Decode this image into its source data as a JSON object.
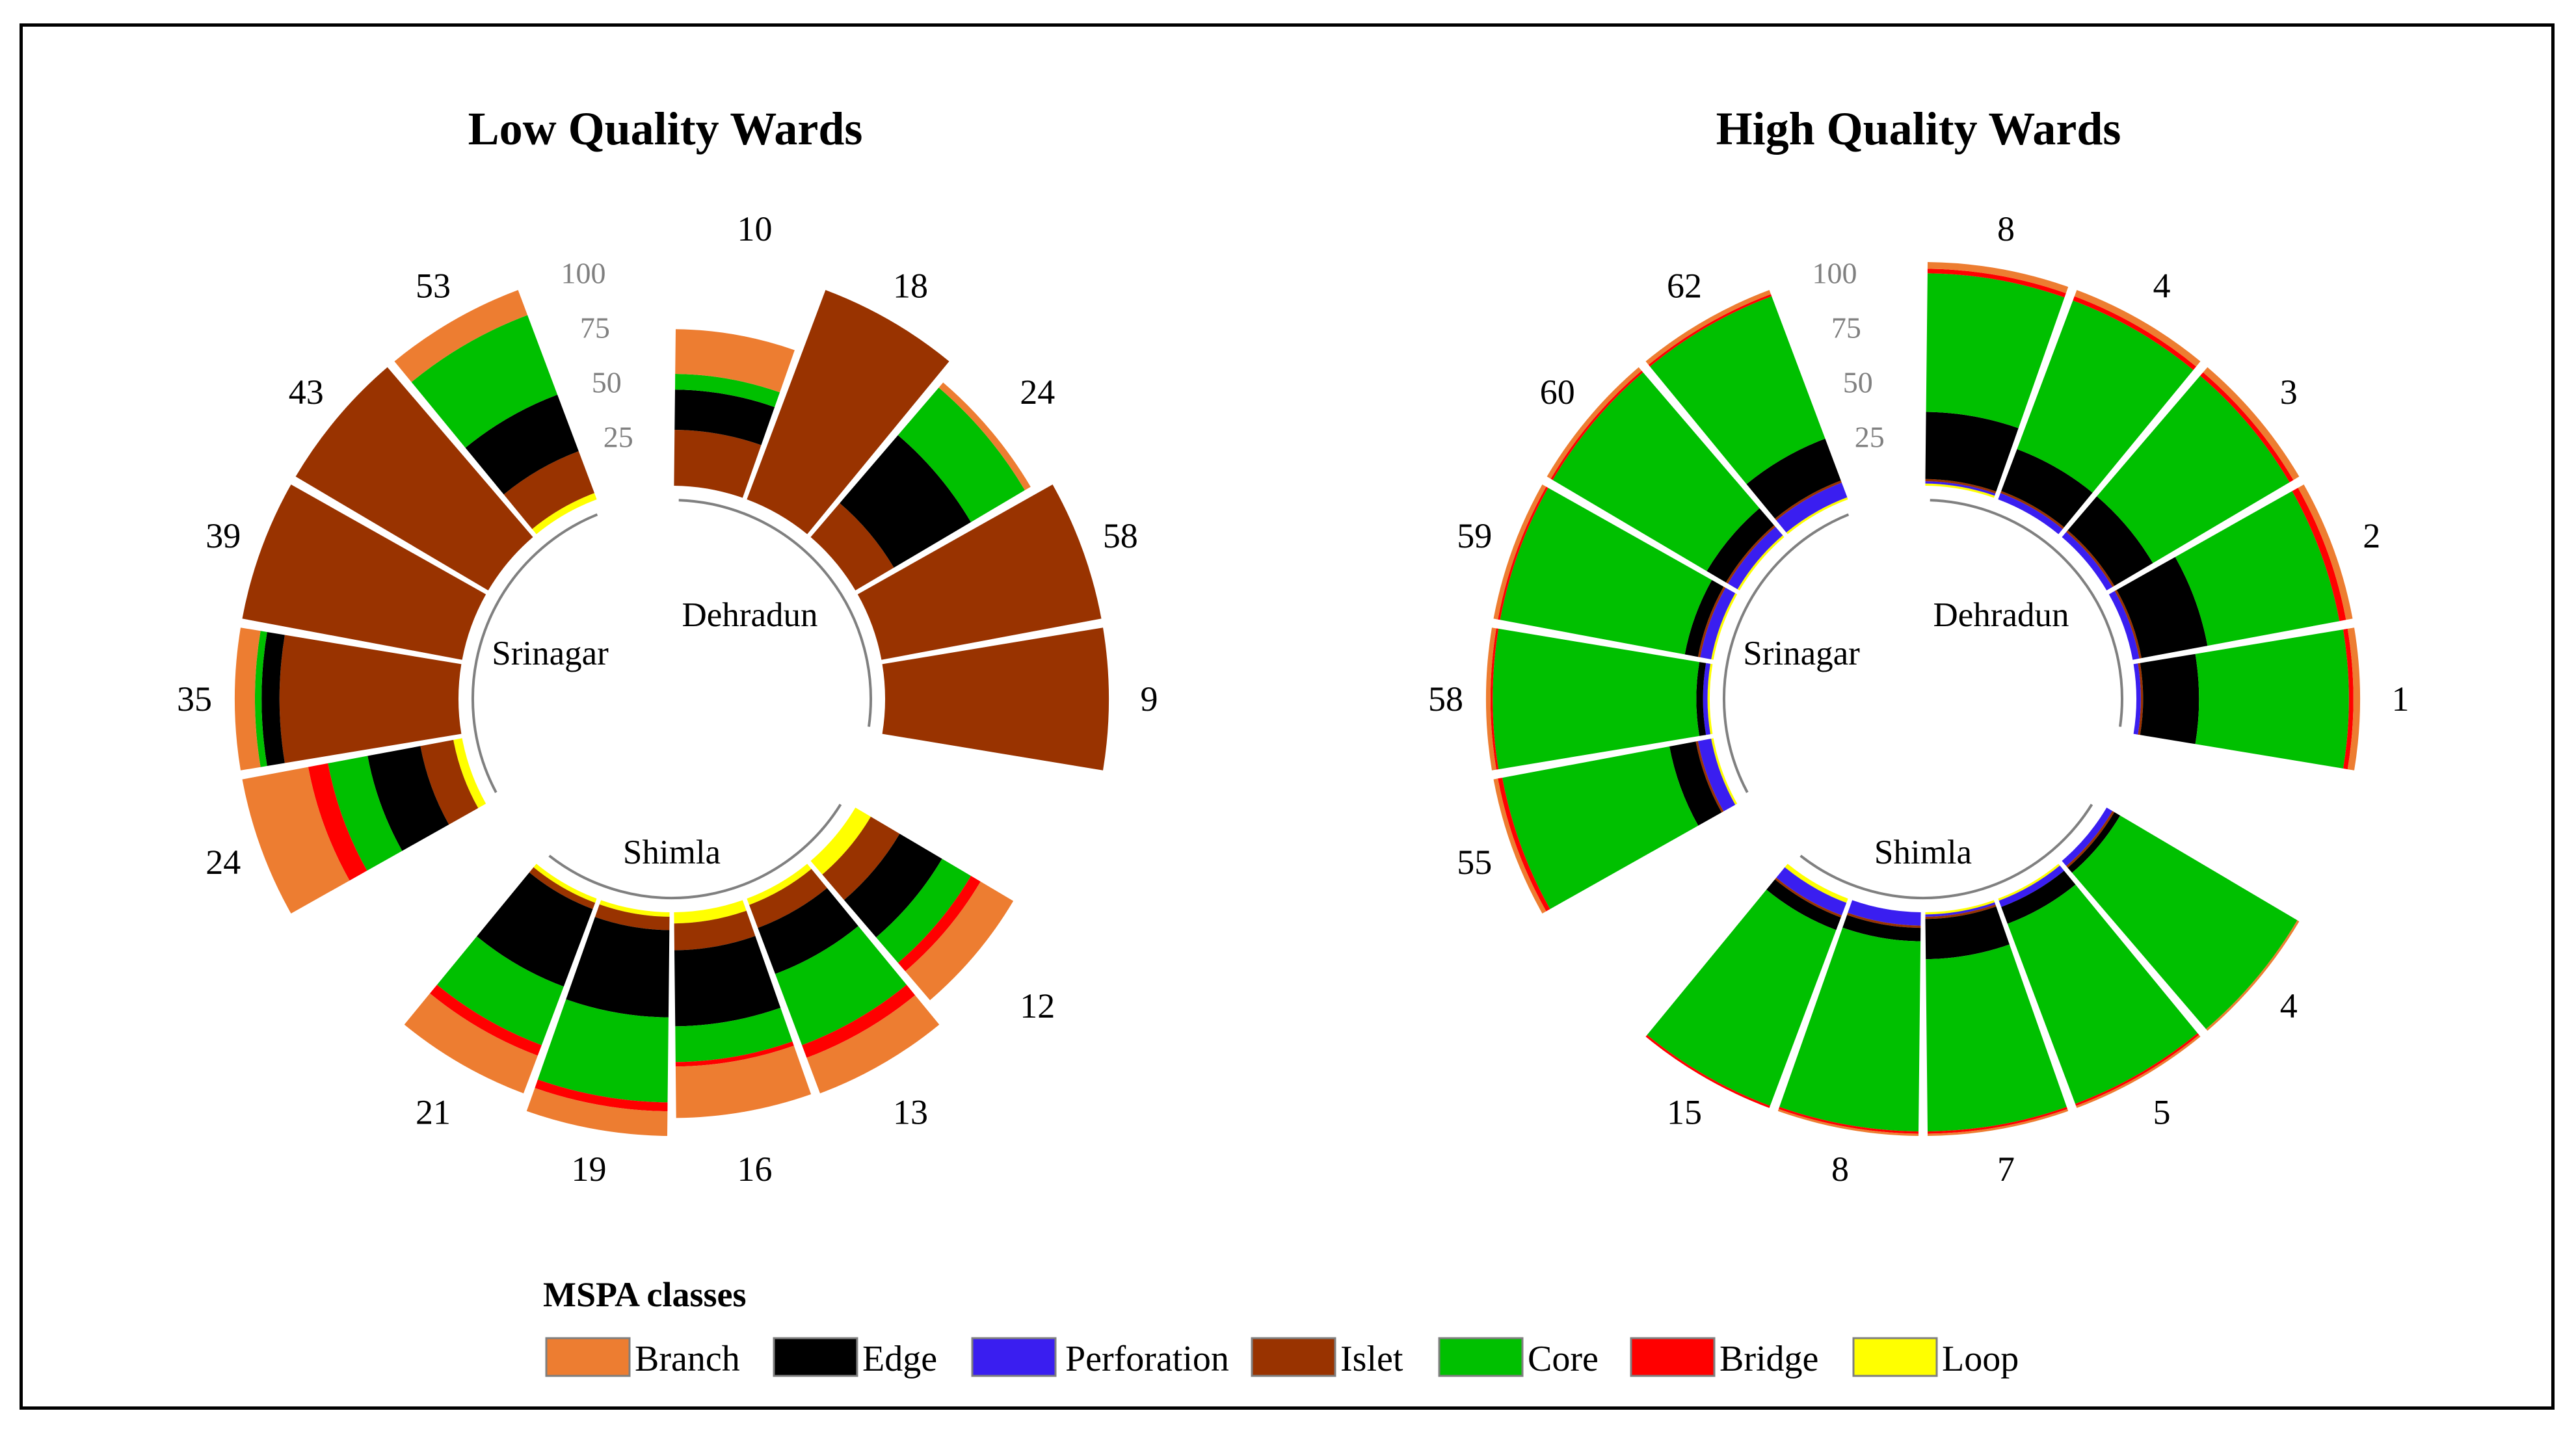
{
  "legend": {
    "title": "MSPA classes",
    "items": [
      {
        "key": "branch",
        "label": "Branch",
        "color": "#ED7D31"
      },
      {
        "key": "edge",
        "label": "Edge",
        "color": "#000000"
      },
      {
        "key": "perforation",
        "label": "Perforation",
        "color": "#3A1EF0"
      },
      {
        "key": "islet",
        "label": "Islet",
        "color": "#993300"
      },
      {
        "key": "core",
        "label": "Core",
        "color": "#00C000"
      },
      {
        "key": "bridge",
        "label": "Bridge",
        "color": "#FF0000"
      },
      {
        "key": "loop",
        "label": "Loop",
        "color": "#FFFF00"
      }
    ]
  },
  "chart_data": [
    {
      "type": "circular-stacked-bar",
      "title": "Low Quality Wards",
      "radial_ticks": [
        "25",
        "50",
        "75",
        "100"
      ],
      "ylim": [
        0,
        100
      ],
      "classes": [
        "loop",
        "perforation",
        "islet",
        "edge",
        "core",
        "bridge",
        "branch"
      ],
      "groups": [
        {
          "name": "Dehradun",
          "bars": [
            {
              "label": "10",
              "values": {
                "loop": 0,
                "perforation": 0,
                "islet": 25,
                "edge": 18,
                "core": 7,
                "bridge": 0,
                "branch": 20
              }
            },
            {
              "label": "18",
              "values": {
                "loop": 0,
                "perforation": 0,
                "islet": 100,
                "edge": 0,
                "core": 0,
                "bridge": 0,
                "branch": 0
              }
            },
            {
              "label": "24",
              "values": {
                "loop": 0,
                "perforation": 0,
                "islet": 20,
                "edge": 40,
                "core": 28,
                "bridge": 0,
                "branch": 3
              }
            },
            {
              "label": "58",
              "values": {
                "loop": 0,
                "perforation": 0,
                "islet": 100,
                "edge": 0,
                "core": 0,
                "bridge": 0,
                "branch": 0
              }
            },
            {
              "label": "9",
              "values": {
                "loop": 0,
                "perforation": 0,
                "islet": 100,
                "edge": 0,
                "core": 0,
                "bridge": 0,
                "branch": 0
              }
            }
          ]
        },
        {
          "name": "Shimla",
          "bars": [
            {
              "label": "12",
              "values": {
                "loop": 8,
                "perforation": 0,
                "islet": 15,
                "edge": 22,
                "core": 15,
                "bridge": 5,
                "branch": 17
              }
            },
            {
              "label": "13",
              "values": {
                "loop": 3,
                "perforation": 0,
                "islet": 11,
                "edge": 22,
                "core": 34,
                "bridge": 6,
                "branch": 17
              }
            },
            {
              "label": "16",
              "values": {
                "loop": 5,
                "perforation": 0,
                "islet": 12,
                "edge": 34,
                "core": 16,
                "bridge": 2,
                "branch": 23
              }
            },
            {
              "label": "19",
              "values": {
                "loop": 2,
                "perforation": 0,
                "islet": 6,
                "edge": 39,
                "core": 38,
                "bridge": 4,
                "branch": 11
              }
            },
            {
              "label": "21",
              "values": {
                "loop": 2,
                "perforation": 0,
                "islet": 3,
                "edge": 37,
                "core": 28,
                "bridge": 5,
                "branch": 18
              }
            }
          ]
        },
        {
          "name": "Srinagar",
          "bars": [
            {
              "label": "24",
              "values": {
                "loop": 4,
                "perforation": 0,
                "islet": 15,
                "edge": 24,
                "core": 18,
                "bridge": 9,
                "branch": 30
              }
            },
            {
              "label": "35",
              "values": {
                "loop": 0,
                "perforation": 0,
                "islet": 80,
                "edge": 8,
                "core": 3,
                "bridge": 0,
                "branch": 9
              }
            },
            {
              "label": "39",
              "values": {
                "loop": 0,
                "perforation": 0,
                "islet": 100,
                "edge": 0,
                "core": 0,
                "bridge": 0,
                "branch": 0
              }
            },
            {
              "label": "43",
              "values": {
                "loop": 0,
                "perforation": 0,
                "islet": 100,
                "edge": 0,
                "core": 0,
                "bridge": 0,
                "branch": 0
              }
            },
            {
              "label": "53",
              "values": {
                "loop": 3,
                "perforation": 0,
                "islet": 20,
                "edge": 27,
                "core": 38,
                "bridge": 0,
                "branch": 12
              }
            }
          ]
        }
      ]
    },
    {
      "type": "circular-stacked-bar",
      "title": "High Quality Wards",
      "radial_ticks": [
        "25",
        "50",
        "75",
        "100"
      ],
      "ylim": [
        0,
        100
      ],
      "classes": [
        "loop",
        "perforation",
        "islet",
        "edge",
        "core",
        "bridge",
        "branch"
      ],
      "groups": [
        {
          "name": "Dehradun",
          "bars": [
            {
              "label": "8",
              "values": {
                "loop": 1,
                "perforation": 1,
                "islet": 1,
                "edge": 30,
                "core": 62,
                "bridge": 2,
                "branch": 3
              }
            },
            {
              "label": "4",
              "values": {
                "loop": 0,
                "perforation": 3,
                "islet": 1,
                "edge": 20,
                "core": 71,
                "bridge": 2,
                "branch": 3
              }
            },
            {
              "label": "3",
              "values": {
                "loop": 0,
                "perforation": 3,
                "islet": 1,
                "edge": 20,
                "core": 71,
                "bridge": 2,
                "branch": 3
              }
            },
            {
              "label": "2",
              "values": {
                "loop": 0,
                "perforation": 3,
                "islet": 1,
                "edge": 30,
                "core": 60,
                "bridge": 3,
                "branch": 3
              }
            },
            {
              "label": "1",
              "values": {
                "loop": 0,
                "perforation": 2,
                "islet": 1,
                "edge": 25,
                "core": 67,
                "bridge": 2,
                "branch": 3
              }
            }
          ]
        },
        {
          "name": "Shimla",
          "bars": [
            {
              "label": "4",
              "values": {
                "loop": 0,
                "perforation": 3,
                "islet": 1,
                "edge": 3,
                "core": 92,
                "bridge": 0,
                "branch": 1
              }
            },
            {
              "label": "5",
              "values": {
                "loop": 1,
                "perforation": 3,
                "islet": 0,
                "edge": 8,
                "core": 86,
                "bridge": 1,
                "branch": 1
              }
            },
            {
              "label": "7",
              "values": {
                "loop": 1,
                "perforation": 1,
                "islet": 1,
                "edge": 18,
                "core": 77,
                "bridge": 1,
                "branch": 1
              }
            },
            {
              "label": "8",
              "values": {
                "loop": 0,
                "perforation": 6,
                "islet": 1,
                "edge": 6,
                "core": 85,
                "bridge": 1,
                "branch": 1
              }
            },
            {
              "label": "15",
              "values": {
                "loop": 2,
                "perforation": 6,
                "islet": 1,
                "edge": 6,
                "core": 84,
                "bridge": 1,
                "branch": 0
              }
            }
          ]
        },
        {
          "name": "Srinagar",
          "bars": [
            {
              "label": "55",
              "values": {
                "loop": 1,
                "perforation": 6,
                "islet": 1,
                "edge": 12,
                "core": 76,
                "bridge": 2,
                "branch": 2
              }
            },
            {
              "label": "58",
              "values": {
                "loop": 1,
                "perforation": 2,
                "islet": 0,
                "edge": 3,
                "core": 91,
                "bridge": 1,
                "branch": 2
              }
            },
            {
              "label": "59",
              "values": {
                "loop": 1,
                "perforation": 5,
                "islet": 1,
                "edge": 6,
                "core": 84,
                "bridge": 1,
                "branch": 2
              }
            },
            {
              "label": "60",
              "values": {
                "loop": 1,
                "perforation": 5,
                "islet": 1,
                "edge": 10,
                "core": 80,
                "bridge": 1,
                "branch": 2
              }
            },
            {
              "label": "62",
              "values": {
                "loop": 1,
                "perforation": 7,
                "islet": 1,
                "edge": 20,
                "core": 68,
                "bridge": 1,
                "branch": 2
              }
            }
          ]
        }
      ]
    }
  ]
}
